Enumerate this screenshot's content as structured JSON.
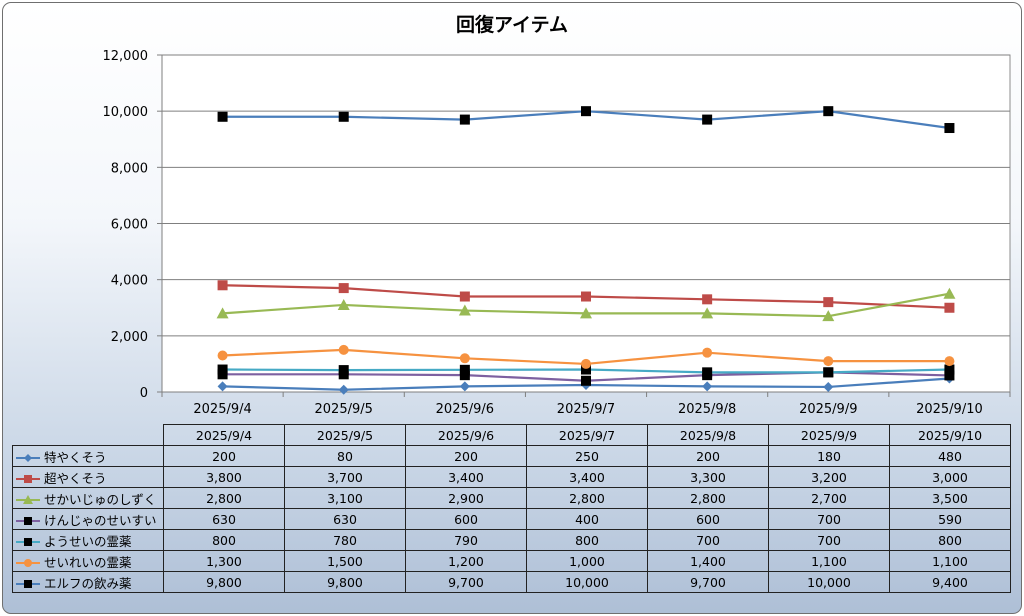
{
  "chart_data": {
    "type": "line",
    "title": "回復アイテム",
    "xlabel": "",
    "ylabel": "",
    "ylim": [
      0,
      12000
    ],
    "yticks": [
      0,
      2000,
      4000,
      6000,
      8000,
      10000,
      12000
    ],
    "ytick_labels": [
      "0",
      "2,000",
      "4,000",
      "6,000",
      "8,000",
      "10,000",
      "12,000"
    ],
    "grid": true,
    "legend": "data-table",
    "categories": [
      "2025/9/4",
      "2025/9/5",
      "2025/9/6",
      "2025/9/7",
      "2025/9/8",
      "2025/9/9",
      "2025/9/10"
    ],
    "series": [
      {
        "name": "特やくそう",
        "values": [
          200,
          80,
          200,
          250,
          200,
          180,
          480
        ],
        "labels": [
          "200",
          "80",
          "200",
          "250",
          "200",
          "180",
          "480"
        ],
        "color": "#4a7ebb",
        "marker": "diamond"
      },
      {
        "name": "超やくそう",
        "values": [
          3800,
          3700,
          3400,
          3400,
          3300,
          3200,
          3000
        ],
        "labels": [
          "3,800",
          "3,700",
          "3,400",
          "3,400",
          "3,300",
          "3,200",
          "3,000"
        ],
        "color": "#be4b48",
        "marker": "square"
      },
      {
        "name": "せかいじゅのしずく",
        "values": [
          2800,
          3100,
          2900,
          2800,
          2800,
          2700,
          3500
        ],
        "labels": [
          "2,800",
          "3,100",
          "2,900",
          "2,800",
          "2,800",
          "2,700",
          "3,500"
        ],
        "color": "#98b954",
        "marker": "triangle"
      },
      {
        "name": "けんじゃのせいすい",
        "values": [
          630,
          630,
          600,
          400,
          600,
          700,
          590
        ],
        "labels": [
          "630",
          "630",
          "600",
          "400",
          "600",
          "700",
          "590"
        ],
        "color": "#7d60a0",
        "marker": "black-square"
      },
      {
        "name": "ようせいの霊薬",
        "values": [
          800,
          780,
          790,
          800,
          700,
          700,
          800
        ],
        "labels": [
          "800",
          "780",
          "790",
          "800",
          "700",
          "700",
          "800"
        ],
        "color": "#46aac5",
        "marker": "black-square"
      },
      {
        "name": "せいれいの霊薬",
        "values": [
          1300,
          1500,
          1200,
          1000,
          1400,
          1100,
          1100
        ],
        "labels": [
          "1,300",
          "1,500",
          "1,200",
          "1,000",
          "1,400",
          "1,100",
          "1,100"
        ],
        "color": "#f69240",
        "marker": "circle"
      },
      {
        "name": "エルフの飲み薬",
        "values": [
          9800,
          9800,
          9700,
          10000,
          9700,
          10000,
          9400
        ],
        "labels": [
          "9,800",
          "9,800",
          "9,700",
          "10,000",
          "9,700",
          "10,000",
          "9,400"
        ],
        "color": "#4a7ebb",
        "marker": "black-square"
      }
    ]
  }
}
